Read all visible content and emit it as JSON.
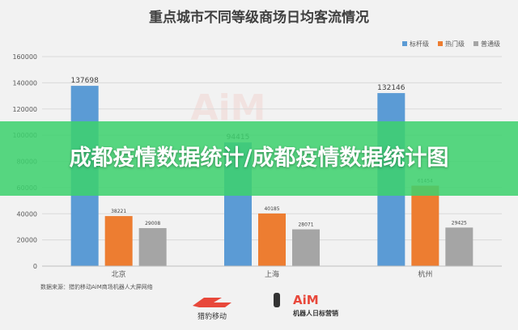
{
  "banner": {
    "text": "成都疫情数据统计/成都疫情数据统计图"
  },
  "chart_data": {
    "type": "bar",
    "title": "重点城市不同等级商场日均客流情况",
    "categories": [
      "北京",
      "上海",
      "杭州"
    ],
    "series": [
      {
        "name": "标杆级",
        "color": "#5b9bd5",
        "values": [
          137698,
          94415,
          132146
        ]
      },
      {
        "name": "热门级",
        "color": "#ed7d31",
        "values": [
          38221,
          40185,
          61454
        ]
      },
      {
        "name": "普通级",
        "color": "#a5a5a5",
        "values": [
          29008,
          28071,
          29425
        ]
      }
    ],
    "yticks": [
      "0",
      "20000",
      "40000",
      "60000",
      "80000",
      "100000",
      "120000",
      "140000",
      "160000"
    ],
    "ylim": [
      0,
      160000
    ],
    "grid": true,
    "legend": "top-right"
  },
  "source": {
    "text": "数据来源：猎豹移动AiM商场机器人大屏网络"
  },
  "logos": {
    "left_text": "猎豹移动",
    "right_text": "机器人日标营销",
    "watermark_text": "AiM"
  }
}
